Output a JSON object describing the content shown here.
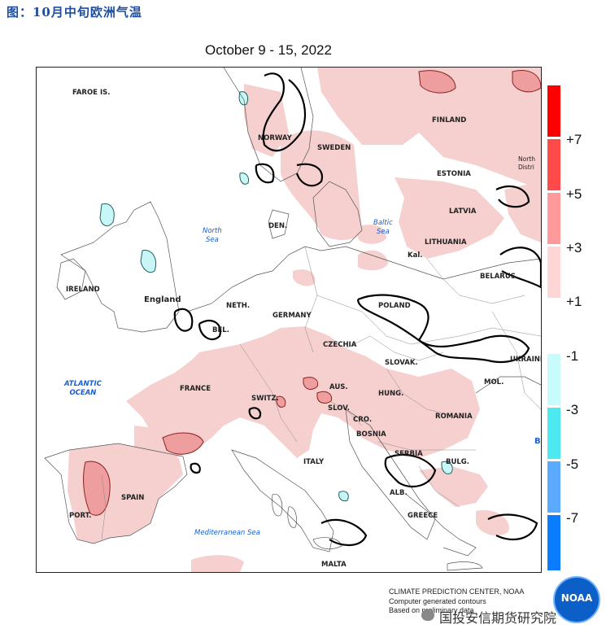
{
  "figure_title": "图：10月中旬欧洲气温",
  "map_date": "October 9 - 15, 2022",
  "colorbar": {
    "colors": [
      "#ff0000",
      "#ff4a4a",
      "#ff9a9a",
      "#ffd6d6",
      "#ffffff",
      "#c8fbfb",
      "#4de8f0",
      "#5aaaff",
      "#0a7cff"
    ],
    "labels": [
      "+7",
      "+5",
      "+3",
      "+1",
      "-1",
      "-3",
      "-5",
      "-7"
    ]
  },
  "map_labels": {
    "faroe": "FAROE IS.",
    "norway": "NORWAY",
    "sweden": "SWEDEN",
    "finland": "FINLAND",
    "north_district": "North\nDistri",
    "estonia": "ESTONIA",
    "latvia": "LATVIA",
    "lithuania": "LITHUANIA",
    "kal": "Kal.",
    "belarus": "BELARUS",
    "den": "DEN.",
    "ireland": "IRELAND",
    "england": "England",
    "neth": "NETH.",
    "bel": "BEL.",
    "germany": "GERMANY",
    "poland": "POLAND",
    "czechia": "CZECHIA",
    "slovak": "SLOVAK.",
    "ukraine": "UKRAINE",
    "mol": "MOL.",
    "france": "FRANCE",
    "switz": "SWITZ.",
    "aus": "AUS.",
    "slov": "SLOV.",
    "hung": "HUNG.",
    "cro": "CRO.",
    "bosnia": "BOSNIA",
    "romania": "ROMANIA",
    "serbia": "SERBIA",
    "bulg": "BULG.",
    "alb": "ALB.",
    "greece": "GREECE",
    "italy": "ITALY",
    "spain": "SPAIN",
    "port": "PORT.",
    "malta": "MALTA",
    "b_edge": "B"
  },
  "seas": {
    "north_sea": "North\nSea",
    "baltic_sea": "Baltic\nSea",
    "atlantic": "ATLANTIC\nOCEAN",
    "mediterranean": "Mediterranean Sea"
  },
  "credits": {
    "line1": "CLIMATE PREDICTION CENTER, NOAA",
    "line2": "Computer generated contours",
    "line3": "Based on preliminary data"
  },
  "logo_text": "NOAA",
  "watermark": "国投安信期货研究院"
}
